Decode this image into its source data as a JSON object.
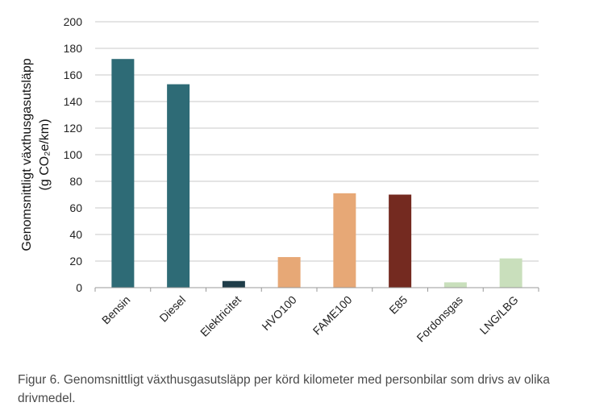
{
  "chart_data": {
    "type": "bar",
    "ylabel_line1": "Genomsnittligt växthusgasutsläpp",
    "ylabel_line2": "(g CO₂e/km)",
    "ylim": [
      0,
      200
    ],
    "yticks": [
      0,
      20,
      40,
      60,
      80,
      100,
      120,
      140,
      160,
      180,
      200
    ],
    "grid": true,
    "categories": [
      "Bensin",
      "Diesel",
      "Elektricitet",
      "HVO100",
      "FAME100",
      "E85",
      "Fordonsgas",
      "LNG/LBG"
    ],
    "values": [
      172,
      153,
      5,
      23,
      71,
      70,
      4,
      22
    ],
    "colors": [
      "#2e6b76",
      "#2e6b76",
      "#1f3d49",
      "#e7a876",
      "#e7a876",
      "#742a20",
      "#c9dfbc",
      "#c9dfbc"
    ]
  },
  "caption": "Figur 6. Genomsnittligt växthusgasutsläpp per körd kilometer med personbilar som drivs av olika drivmedel."
}
